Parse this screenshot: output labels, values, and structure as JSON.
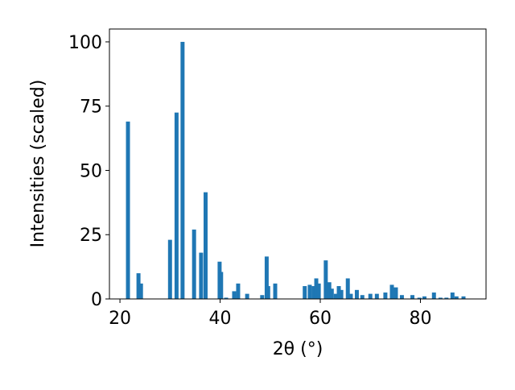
{
  "chart_data": {
    "type": "bar",
    "x": [
      21.6,
      23.7,
      24.2,
      30.0,
      31.3,
      32.5,
      34.8,
      36.2,
      37.1,
      39.9,
      40.2,
      41.2,
      42.8,
      43.6,
      45.4,
      48.4,
      49.3,
      49.6,
      51.0,
      56.9,
      57.9,
      58.7,
      59.2,
      59.7,
      61.1,
      61.8,
      62.3,
      63.1,
      63.7,
      64.2,
      65.5,
      66.1,
      67.3,
      68.4,
      70.0,
      71.3,
      73.0,
      74.3,
      75.1,
      76.3,
      78.4,
      79.8,
      80.8,
      82.7,
      84.0,
      85.2,
      86.4,
      87.2,
      88.6
    ],
    "values": [
      69,
      10,
      6,
      23,
      72.5,
      100,
      27,
      18,
      41.5,
      14.5,
      10.5,
      0.5,
      3,
      6,
      2,
      1.5,
      16.5,
      5,
      6,
      5,
      5.5,
      5,
      8,
      6,
      15,
      6.5,
      4,
      2,
      5,
      3.5,
      8,
      2,
      3.5,
      1.5,
      2,
      2,
      2.5,
      5.5,
      4.5,
      1.5,
      1.5,
      0.5,
      1,
      2.5,
      0.5,
      0.5,
      2.5,
      1,
      1
    ],
    "color": "#1f77b4",
    "xlabel": "2θ (°)",
    "ylabel": "Intensities (scaled)",
    "xlim": [
      17.9,
      93.1
    ],
    "xticks": [
      20,
      40,
      60,
      80
    ],
    "ylim": [
      0,
      105
    ],
    "yticks": [
      0,
      25,
      50,
      75,
      100
    ]
  }
}
